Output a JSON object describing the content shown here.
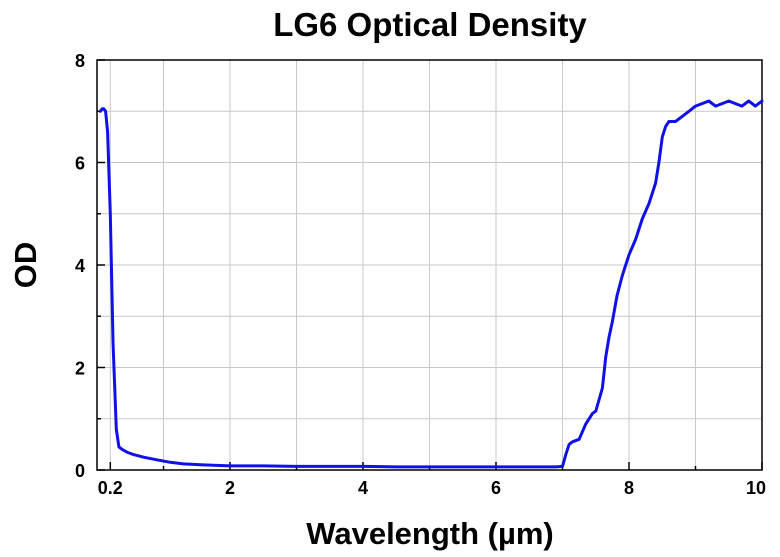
{
  "chart_data": {
    "type": "line",
    "title": "LG6 Optical Density",
    "xlabel": "Wavelength (µm)",
    "ylabel": "OD",
    "xlim": [
      0.0,
      10.0
    ],
    "ylim": [
      0,
      8
    ],
    "grid": true,
    "x_ticks": [
      {
        "value": 0.2,
        "label": "0.2"
      },
      {
        "value": 2,
        "label": "2"
      },
      {
        "value": 4,
        "label": "4"
      },
      {
        "value": 6,
        "label": "6"
      },
      {
        "value": 8,
        "label": "8"
      },
      {
        "value": 10,
        "label": "10"
      }
    ],
    "x_minor_ticks": [
      1,
      3,
      5,
      7,
      9
    ],
    "y_ticks": [
      {
        "value": 0,
        "label": "0"
      },
      {
        "value": 2,
        "label": "2"
      },
      {
        "value": 4,
        "label": "4"
      },
      {
        "value": 6,
        "label": "6"
      },
      {
        "value": 8,
        "label": "8"
      }
    ],
    "y_minor_ticks": [
      1,
      3,
      5,
      7
    ],
    "colors": {
      "series": "#1010e8",
      "grid": "#c8c8c8",
      "axis": "#000000"
    },
    "series": [
      {
        "color": "#1010e8",
        "x": [
          0.05,
          0.08,
          0.1,
          0.13,
          0.16,
          0.2,
          0.24,
          0.29,
          0.33,
          0.38,
          0.45,
          0.55,
          0.7,
          0.9,
          1.1,
          1.3,
          1.6,
          2.0,
          2.5,
          3.0,
          3.5,
          4.0,
          4.5,
          5.0,
          5.5,
          6.0,
          6.5,
          6.9,
          7.0,
          7.05,
          7.1,
          7.15,
          7.25,
          7.35,
          7.4,
          7.45,
          7.5,
          7.6,
          7.65,
          7.7,
          7.75,
          7.82,
          7.9,
          8.0,
          8.1,
          8.2,
          8.3,
          8.4,
          8.45,
          8.5,
          8.55,
          8.6,
          8.65,
          8.7,
          8.8,
          8.9,
          9.0,
          9.1,
          9.2,
          9.3,
          9.4,
          9.5,
          9.6,
          9.7,
          9.8,
          9.9,
          10.0
        ],
        "y": [
          7.0,
          7.05,
          7.05,
          7.0,
          6.6,
          5.0,
          2.5,
          0.8,
          0.45,
          0.4,
          0.35,
          0.3,
          0.25,
          0.2,
          0.15,
          0.12,
          0.1,
          0.08,
          0.08,
          0.07,
          0.07,
          0.07,
          0.06,
          0.06,
          0.06,
          0.06,
          0.06,
          0.06,
          0.07,
          0.3,
          0.5,
          0.55,
          0.6,
          0.9,
          1.0,
          1.1,
          1.15,
          1.6,
          2.2,
          2.6,
          2.9,
          3.4,
          3.8,
          4.2,
          4.5,
          4.9,
          5.2,
          5.6,
          6.0,
          6.5,
          6.7,
          6.8,
          6.8,
          6.8,
          6.9,
          7.0,
          7.1,
          7.15,
          7.2,
          7.1,
          7.15,
          7.2,
          7.15,
          7.1,
          7.2,
          7.1,
          7.2
        ]
      }
    ]
  }
}
